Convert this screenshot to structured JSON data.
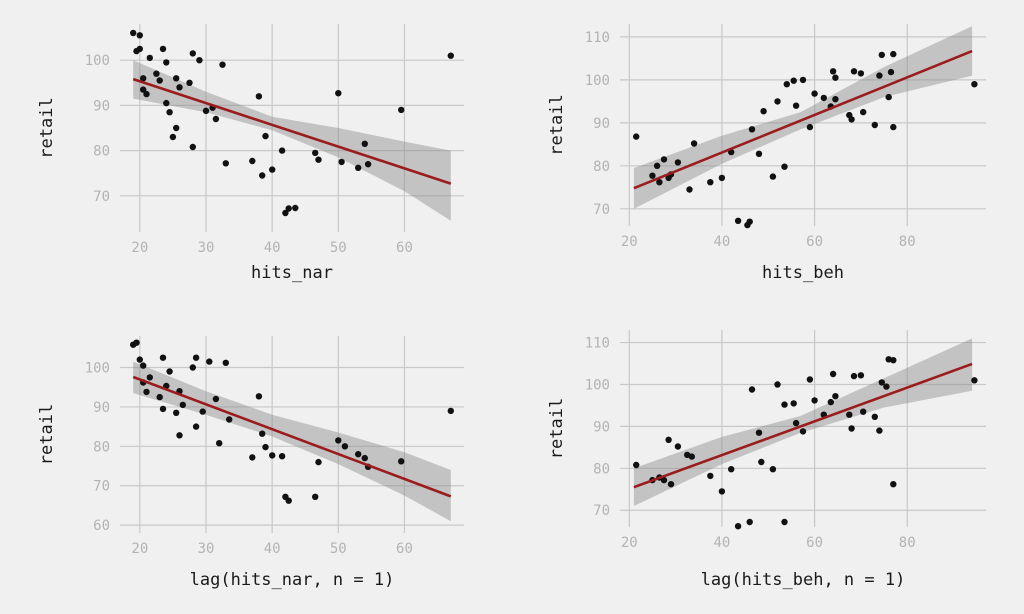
{
  "colors": {
    "background": "#f0f0f0",
    "grid": "#c8c8c8",
    "points": "#111111",
    "fit": "#9b1c1c",
    "band": "#8c8c8c"
  },
  "chart_data": [
    {
      "type": "scatter",
      "xlabel": "hits_nar",
      "ylabel": "retail",
      "xlim": [
        17,
        69
      ],
      "ylim": [
        62,
        108
      ],
      "xticks": [
        20,
        30,
        40,
        50,
        60
      ],
      "yticks": [
        70,
        80,
        90,
        100
      ],
      "grid": true,
      "fit": {
        "x": [
          19,
          67
        ],
        "y": [
          95.8,
          72.7
        ]
      },
      "band": {
        "x": [
          19,
          30,
          40,
          50,
          60,
          67
        ],
        "lower": [
          91.5,
          88.5,
          84.5,
          78.5,
          71.0,
          64.5
        ],
        "upper": [
          100.0,
          93.0,
          87.5,
          85.0,
          82.0,
          80.0
        ]
      },
      "points": [
        [
          19,
          106
        ],
        [
          19.5,
          102
        ],
        [
          20,
          105.5
        ],
        [
          20,
          102.5
        ],
        [
          20.5,
          96
        ],
        [
          20.5,
          93.5
        ],
        [
          21,
          92.5
        ],
        [
          21.5,
          100.5
        ],
        [
          22.5,
          97
        ],
        [
          23.5,
          102.5
        ],
        [
          23,
          95.5
        ],
        [
          24,
          99.5
        ],
        [
          24,
          90.5
        ],
        [
          24.5,
          88.5
        ],
        [
          25,
          83
        ],
        [
          25.5,
          85
        ],
        [
          25.5,
          96
        ],
        [
          26,
          94
        ],
        [
          27.5,
          95
        ],
        [
          28,
          101.5
        ],
        [
          28,
          80.8
        ],
        [
          29,
          100
        ],
        [
          30,
          88.8
        ],
        [
          31,
          89.5
        ],
        [
          31.5,
          87
        ],
        [
          32.5,
          99
        ],
        [
          33,
          77.2
        ],
        [
          37,
          77.7
        ],
        [
          38,
          92
        ],
        [
          38.5,
          74.5
        ],
        [
          39,
          83.2
        ],
        [
          40,
          75.8
        ],
        [
          41.5,
          80
        ],
        [
          42,
          66.2
        ],
        [
          42.5,
          67.2
        ],
        [
          43.5,
          67.3
        ],
        [
          46.5,
          79.5
        ],
        [
          47,
          78
        ],
        [
          50,
          92.7
        ],
        [
          50.5,
          77.5
        ],
        [
          53,
          76.2
        ],
        [
          54,
          81.5
        ],
        [
          54.5,
          77
        ],
        [
          59.5,
          89
        ],
        [
          67,
          101
        ]
      ]
    },
    {
      "type": "scatter",
      "xlabel": "hits_beh",
      "ylabel": "retail",
      "xlim": [
        18,
        97
      ],
      "ylim": [
        66,
        113
      ],
      "xticks": [
        20,
        40,
        60,
        80
      ],
      "yticks": [
        70,
        80,
        90,
        100,
        110
      ],
      "grid": true,
      "fit": {
        "x": [
          21,
          94
        ],
        "y": [
          74.8,
          106.7
        ]
      },
      "band": {
        "x": [
          21,
          40,
          57,
          75,
          94
        ],
        "lower": [
          70.0,
          80.5,
          88.5,
          96.0,
          101.0
        ],
        "upper": [
          79.5,
          87.0,
          92.5,
          103.0,
          112.5
        ]
      },
      "points": [
        [
          21.5,
          86.8
        ],
        [
          25,
          77.7
        ],
        [
          26,
          80
        ],
        [
          26.5,
          76.2
        ],
        [
          27.5,
          81.5
        ],
        [
          28.5,
          77.2
        ],
        [
          29,
          78
        ],
        [
          30.5,
          80.8
        ],
        [
          33,
          74.5
        ],
        [
          34,
          85.2
        ],
        [
          37.5,
          76.2
        ],
        [
          40,
          77.2
        ],
        [
          42,
          83.2
        ],
        [
          43.5,
          67.2
        ],
        [
          45.5,
          66.2
        ],
        [
          46,
          67
        ],
        [
          46.5,
          88.5
        ],
        [
          48,
          82.8
        ],
        [
          49,
          92.7
        ],
        [
          51,
          77.5
        ],
        [
          52,
          95
        ],
        [
          53.5,
          79.8
        ],
        [
          54,
          99
        ],
        [
          55.5,
          99.8
        ],
        [
          56,
          94
        ],
        [
          57.5,
          100
        ],
        [
          59,
          89
        ],
        [
          60,
          96.8
        ],
        [
          62,
          95.8
        ],
        [
          63.5,
          93.8
        ],
        [
          64,
          102
        ],
        [
          64.5,
          95.5
        ],
        [
          64.5,
          100.5
        ],
        [
          67.5,
          91.8
        ],
        [
          68,
          90.8
        ],
        [
          68.5,
          102
        ],
        [
          70,
          101.5
        ],
        [
          70.5,
          92.5
        ],
        [
          73,
          89.5
        ],
        [
          74,
          101
        ],
        [
          74.5,
          105.8
        ],
        [
          76,
          96
        ],
        [
          76.5,
          101.8
        ],
        [
          77,
          106
        ],
        [
          77,
          89
        ],
        [
          94.5,
          99
        ]
      ]
    },
    {
      "type": "scatter",
      "xlabel": "lag(hits_nar, n = 1)",
      "ylabel": "retail",
      "xlim": [
        17,
        69
      ],
      "ylim": [
        58,
        108
      ],
      "xticks": [
        20,
        30,
        40,
        50,
        60
      ],
      "yticks": [
        60,
        70,
        80,
        90,
        100
      ],
      "grid": true,
      "fit": {
        "x": [
          19,
          67
        ],
        "y": [
          97.6,
          67.3
        ]
      },
      "band": {
        "x": [
          19,
          30,
          40,
          50,
          60,
          67
        ],
        "lower": [
          93.5,
          88.0,
          82.5,
          75.5,
          67.5,
          61.0
        ],
        "upper": [
          101.5,
          94.0,
          88.0,
          83.5,
          78.5,
          74.0
        ]
      },
      "points": [
        [
          19,
          105.8
        ],
        [
          19.5,
          106.3
        ],
        [
          20,
          102
        ],
        [
          20.5,
          100.5
        ],
        [
          20.5,
          96.2
        ],
        [
          21,
          93.8
        ],
        [
          21.5,
          97.5
        ],
        [
          23.5,
          102.5
        ],
        [
          23,
          92.5
        ],
        [
          23.5,
          89.5
        ],
        [
          24,
          95.3
        ],
        [
          24.5,
          99
        ],
        [
          25.5,
          88.5
        ],
        [
          26,
          94
        ],
        [
          26,
          82.8
        ],
        [
          26.5,
          90.5
        ],
        [
          28,
          100
        ],
        [
          28.5,
          102.5
        ],
        [
          28.5,
          85
        ],
        [
          29.5,
          88.8
        ],
        [
          30.5,
          101.5
        ],
        [
          31.5,
          92
        ],
        [
          32,
          80.8
        ],
        [
          33,
          101.2
        ],
        [
          33.5,
          86.8
        ],
        [
          37,
          77.2
        ],
        [
          38,
          92.7
        ],
        [
          38.5,
          83.2
        ],
        [
          39,
          79.8
        ],
        [
          40,
          77.7
        ],
        [
          41.5,
          77.5
        ],
        [
          42,
          67.2
        ],
        [
          42.5,
          66.2
        ],
        [
          46.5,
          67.2
        ],
        [
          47,
          76
        ],
        [
          50,
          81.5
        ],
        [
          51,
          80
        ],
        [
          53,
          78
        ],
        [
          54,
          77
        ],
        [
          54.5,
          74.8
        ],
        [
          59.5,
          76.2
        ],
        [
          67,
          89
        ]
      ]
    },
    {
      "type": "scatter",
      "xlabel": "lag(hits_beh, n = 1)",
      "ylabel": "retail",
      "xlim": [
        18,
        97
      ],
      "ylim": [
        66,
        113
      ],
      "xticks": [
        20,
        40,
        60,
        80
      ],
      "yticks": [
        70,
        80,
        90,
        100,
        110
      ],
      "grid": true,
      "fit": {
        "x": [
          21,
          94
        ],
        "y": [
          75.5,
          104.9
        ]
      },
      "band": {
        "x": [
          21,
          40,
          57,
          75,
          94
        ],
        "lower": [
          71.0,
          81.0,
          88.5,
          94.5,
          98.5
        ],
        "upper": [
          80.0,
          87.5,
          92.5,
          101.5,
          111.0
        ]
      },
      "points": [
        [
          21.5,
          80.8
        ],
        [
          25,
          77.2
        ],
        [
          26.5,
          77.8
        ],
        [
          27.5,
          77.2
        ],
        [
          28.5,
          86.8
        ],
        [
          29,
          76.2
        ],
        [
          30.5,
          85.2
        ],
        [
          32.5,
          83.2
        ],
        [
          33.5,
          82.8
        ],
        [
          37.5,
          78.2
        ],
        [
          40,
          74.5
        ],
        [
          42,
          79.8
        ],
        [
          43.5,
          66.2
        ],
        [
          46,
          67.2
        ],
        [
          46.5,
          98.8
        ],
        [
          48,
          88.5
        ],
        [
          48.5,
          81.5
        ],
        [
          51,
          79.8
        ],
        [
          52,
          100
        ],
        [
          53.5,
          67.2
        ],
        [
          53.5,
          95.2
        ],
        [
          55.5,
          95.5
        ],
        [
          56,
          90.8
        ],
        [
          57.5,
          88.8
        ],
        [
          59,
          101.2
        ],
        [
          60,
          96.2
        ],
        [
          62,
          92.8
        ],
        [
          63.5,
          95.8
        ],
        [
          64,
          102.5
        ],
        [
          64.5,
          97.2
        ],
        [
          67.5,
          92.8
        ],
        [
          68,
          89.5
        ],
        [
          68.5,
          102
        ],
        [
          70,
          102.2
        ],
        [
          70.5,
          93.5
        ],
        [
          73,
          92.3
        ],
        [
          74,
          89
        ],
        [
          74.5,
          100.5
        ],
        [
          75.5,
          99.5
        ],
        [
          76,
          106
        ],
        [
          77,
          105.8
        ],
        [
          77,
          76.2
        ],
        [
          94.5,
          101
        ]
      ]
    }
  ]
}
